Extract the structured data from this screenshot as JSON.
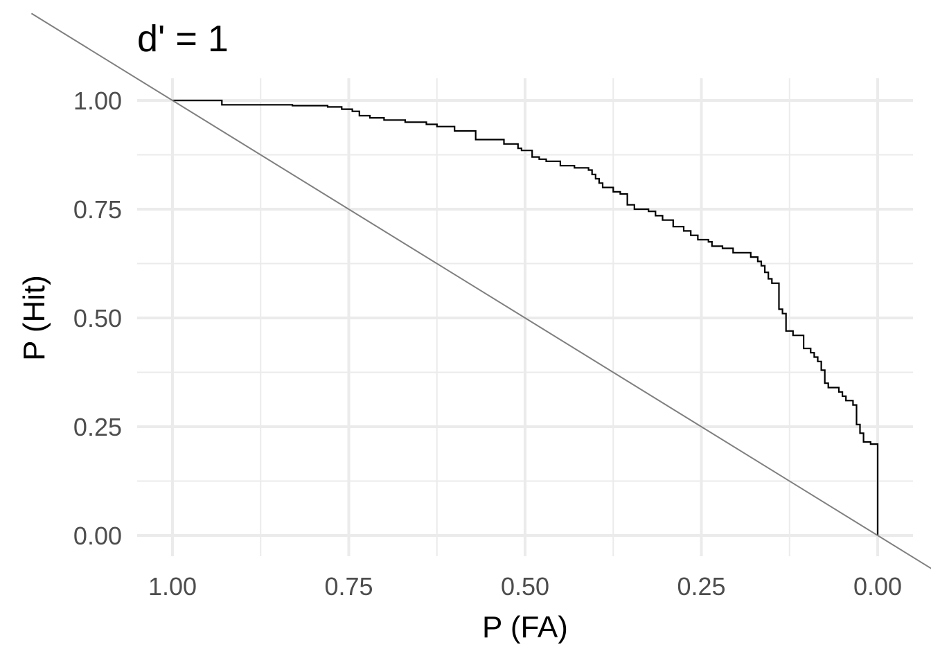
{
  "chart_data": {
    "type": "line",
    "title": "d' = 1",
    "xlabel": "P (FA)",
    "ylabel": "P (Hit)",
    "x_reversed": true,
    "xlim": [
      1.0,
      0.0
    ],
    "ylim": [
      0.0,
      1.0
    ],
    "x_ticks": [
      "1.00",
      "0.75",
      "0.50",
      "0.25",
      "0.00"
    ],
    "y_ticks": [
      "0.00",
      "0.25",
      "0.50",
      "0.75",
      "1.00"
    ],
    "grid": true,
    "series": [
      {
        "kind": "step",
        "color": "#000000",
        "x": [
          1.0,
          0.93,
          0.83,
          0.78,
          0.76,
          0.745,
          0.735,
          0.72,
          0.7,
          0.67,
          0.64,
          0.625,
          0.6,
          0.57,
          0.57,
          0.53,
          0.51,
          0.505,
          0.49,
          0.48,
          0.47,
          0.45,
          0.43,
          0.41,
          0.405,
          0.4,
          0.395,
          0.39,
          0.375,
          0.365,
          0.355,
          0.345,
          0.325,
          0.315,
          0.305,
          0.29,
          0.275,
          0.265,
          0.255,
          0.24,
          0.235,
          0.22,
          0.205,
          0.18,
          0.17,
          0.165,
          0.16,
          0.155,
          0.15,
          0.15,
          0.14,
          0.135,
          0.13,
          0.13,
          0.12,
          0.12,
          0.105,
          0.095,
          0.09,
          0.085,
          0.08,
          0.075,
          0.07,
          0.055,
          0.05,
          0.045,
          0.035,
          0.03,
          0.025,
          0.02,
          0.01,
          0.0,
          0.0
        ],
        "y": [
          1.0,
          0.99,
          0.988,
          0.985,
          0.98,
          0.975,
          0.965,
          0.96,
          0.955,
          0.95,
          0.945,
          0.94,
          0.93,
          0.925,
          0.91,
          0.9,
          0.89,
          0.885,
          0.87,
          0.865,
          0.86,
          0.85,
          0.845,
          0.84,
          0.83,
          0.82,
          0.81,
          0.8,
          0.79,
          0.785,
          0.76,
          0.75,
          0.745,
          0.735,
          0.725,
          0.71,
          0.7,
          0.69,
          0.68,
          0.675,
          0.665,
          0.66,
          0.65,
          0.64,
          0.63,
          0.62,
          0.605,
          0.59,
          0.58,
          0.58,
          0.52,
          0.51,
          0.5,
          0.47,
          0.46,
          0.46,
          0.43,
          0.42,
          0.41,
          0.4,
          0.38,
          0.35,
          0.34,
          0.33,
          0.32,
          0.31,
          0.3,
          0.255,
          0.235,
          0.215,
          0.21,
          0.0,
          0.0
        ]
      },
      {
        "kind": "reference",
        "color": "#7f7f7f",
        "x": [
          1.2,
          -0.1
        ],
        "y": [
          1.2,
          -0.1
        ]
      }
    ]
  }
}
